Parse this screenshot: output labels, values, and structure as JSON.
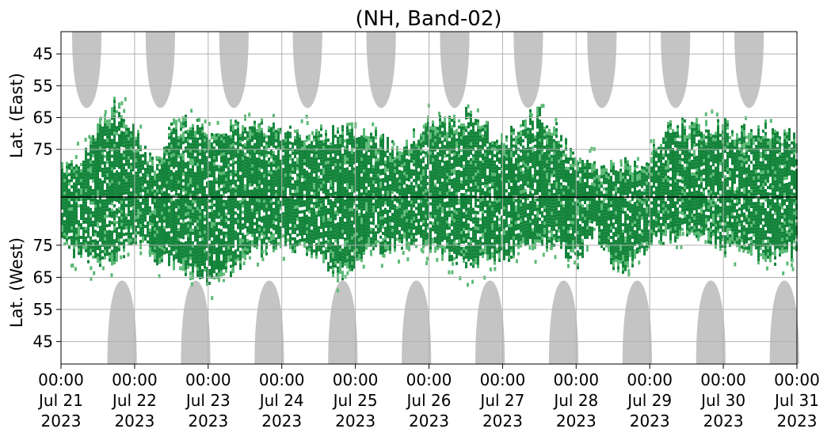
{
  "chart_data": {
    "type": "heatmap",
    "title": "(NH, Band-02)",
    "ylabel_top": "Lat. (East)",
    "ylabel_bottom": "Lat. (West)",
    "xlabel": "",
    "grid": true,
    "x_tick_labels": [
      {
        "time": "00:00",
        "date": "Jul 21",
        "year": "2023"
      },
      {
        "time": "00:00",
        "date": "Jul 22",
        "year": "2023"
      },
      {
        "time": "00:00",
        "date": "Jul 23",
        "year": "2023"
      },
      {
        "time": "00:00",
        "date": "Jul 24",
        "year": "2023"
      },
      {
        "time": "00:00",
        "date": "Jul 25",
        "year": "2023"
      },
      {
        "time": "00:00",
        "date": "Jul 26",
        "year": "2023"
      },
      {
        "time": "00:00",
        "date": "Jul 27",
        "year": "2023"
      },
      {
        "time": "00:00",
        "date": "Jul 28",
        "year": "2023"
      },
      {
        "time": "00:00",
        "date": "Jul 29",
        "year": "2023"
      },
      {
        "time": "00:00",
        "date": "Jul 30",
        "year": "2023"
      },
      {
        "time": "00:00",
        "date": "Jul 31",
        "year": "2023"
      }
    ],
    "xlim": [
      "2023-07-21 00:00",
      "2023-07-31 00:00"
    ],
    "y_ticks_east": [
      "45",
      "55",
      "65",
      "75"
    ],
    "y_ticks_west": [
      "75",
      "65",
      "55",
      "45"
    ],
    "ylim_east": [
      38,
      90
    ],
    "ylim_west": [
      90,
      38
    ],
    "colors": {
      "strong": "#13843a",
      "weak": "#5cba76",
      "no_data": "#c4c4c4",
      "grid": "#b0b0b0",
      "separator": "#000000"
    },
    "no_data_regions": {
      "east_centers_day": [
        0.35,
        1.35,
        2.35,
        3.35,
        4.35,
        5.35,
        6.35,
        7.35,
        8.35,
        9.35
      ],
      "east_lowest_lat": 62,
      "west_centers_day": [
        0.83,
        1.83,
        2.83,
        3.83,
        4.83,
        5.83,
        6.83,
        7.83,
        8.83,
        9.83
      ],
      "west_lowest_lat": 64,
      "half_width_day": 0.2
    },
    "activity_east": {
      "day": [
        0.0,
        0.25,
        0.5,
        0.75,
        1.0,
        1.25,
        1.5,
        1.75,
        2.0,
        2.25,
        2.5,
        2.75,
        3.0,
        3.25,
        3.5,
        3.75,
        4.0,
        4.25,
        4.5,
        4.75,
        5.0,
        5.25,
        5.5,
        5.75,
        6.0,
        6.25,
        6.5,
        6.75,
        7.0,
        7.25,
        7.5,
        7.75,
        8.0,
        8.25,
        8.5,
        8.75,
        9.0,
        9.25,
        9.5,
        9.75,
        10.0
      ],
      "top_lat": [
        82,
        78,
        68,
        60,
        70,
        80,
        68,
        66,
        68,
        68,
        67,
        68,
        70,
        70,
        70,
        70,
        69,
        70,
        75,
        72,
        66,
        67,
        64,
        68,
        73,
        66,
        64,
        70,
        80,
        80,
        81,
        80,
        77,
        67,
        68,
        68,
        68,
        70,
        68,
        70,
        72
      ]
    },
    "activity_west": {
      "day": [
        0.0,
        0.25,
        0.5,
        0.75,
        1.0,
        1.25,
        1.5,
        1.75,
        2.0,
        2.25,
        2.5,
        2.75,
        3.0,
        3.25,
        3.5,
        3.75,
        4.0,
        4.25,
        4.5,
        4.75,
        5.0,
        5.25,
        5.5,
        5.75,
        6.0,
        6.25,
        6.5,
        6.75,
        7.0,
        7.25,
        7.5,
        7.75,
        8.0,
        8.25,
        8.5,
        8.75,
        9.0,
        9.25,
        9.5,
        9.75,
        10.0
      ],
      "bottom_lat": [
        76,
        72,
        70,
        72,
        78,
        72,
        70,
        67,
        64,
        67,
        72,
        74,
        76,
        74,
        72,
        66,
        70,
        74,
        75,
        76,
        74,
        72,
        69,
        70,
        72,
        74,
        76,
        74,
        70,
        80,
        68,
        70,
        76,
        78,
        80,
        78,
        74,
        76,
        70,
        72,
        72
      ]
    }
  }
}
